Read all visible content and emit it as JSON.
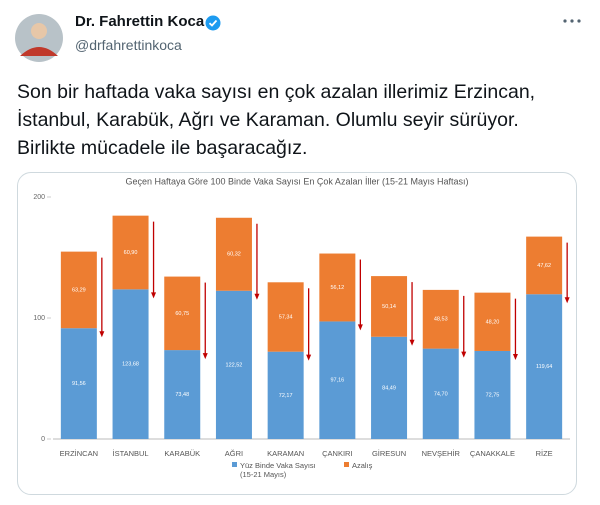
{
  "header": {
    "name": "Dr. Fahrettin Koca",
    "handle": "@drfahrettinkoca"
  },
  "tweet": {
    "text": "Son bir haftada vaka sayısı en çok azalan illerimiz Erzincan, İstanbul, Karabük, Ağrı ve Karaman. Olumlu seyir sürüyor. Birlikte mücadele ile başaracağız."
  },
  "chart_data": {
    "type": "stacked_bar",
    "title": "Geçen Haftaya Göre 100 Binde Vaka Sayısı En Çok Azalan İller (15-21 Mayıs Haftası)",
    "categories": [
      "ERZİNCAN",
      "İSTANBUL",
      "KARABÜK",
      "AĞRI",
      "KARAMAN",
      "ÇANKIRI",
      "GİRESUN",
      "NEVŞEHİR",
      "ÇANAKKALE",
      "RİZE"
    ],
    "series": [
      {
        "name": "Yüz Binde Vaka Sayısı (15-21 Mayıs)",
        "color": "#5b9bd5",
        "values": [
          91.56,
          123.68,
          73.48,
          122.52,
          72.17,
          97.16,
          84.49,
          74.7,
          72.75,
          119.64
        ],
        "value_labels": [
          "91,56",
          "123,68",
          "73,48",
          "122,52",
          "72,17",
          "97,16",
          "84,49",
          "74,70",
          "72,75",
          "119,64"
        ]
      },
      {
        "name": "Azalış",
        "color": "#ed7d31",
        "values": [
          63.29,
          60.9,
          60.75,
          60.32,
          57.34,
          56.12,
          50.14,
          48.53,
          48.2,
          47.62
        ],
        "value_labels": [
          "63,29",
          "60,90",
          "60,75",
          "60,32",
          "57,34",
          "56,12",
          "50,14",
          "48,53",
          "48,20",
          "47,62"
        ]
      }
    ],
    "ylim": [
      0,
      200
    ],
    "yticks": [
      0,
      100,
      200
    ],
    "grid": false
  }
}
